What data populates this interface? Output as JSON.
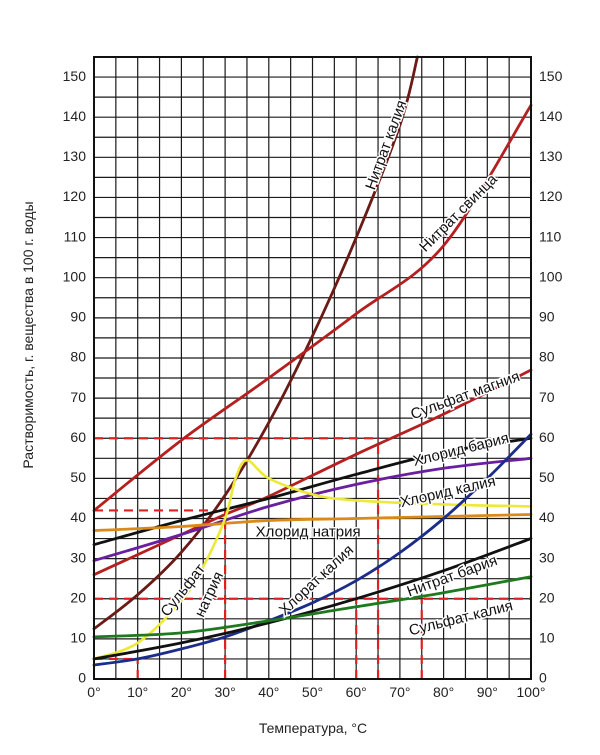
{
  "chart_data": {
    "type": "line",
    "xlabel": "Температура, °C",
    "ylabel": "Растворимость, г. вещества в 100 г. воды",
    "xlim": [
      0,
      100
    ],
    "ylim": [
      0,
      155
    ],
    "grid": true,
    "x_ticks": [
      {
        "v": 0,
        "label": "0°"
      },
      {
        "v": 10,
        "label": "10°"
      },
      {
        "v": 20,
        "label": "20°"
      },
      {
        "v": 30,
        "label": "30°"
      },
      {
        "v": 40,
        "label": "40°"
      },
      {
        "v": 50,
        "label": "50°"
      },
      {
        "v": 60,
        "label": "60°"
      },
      {
        "v": 70,
        "label": "70°"
      },
      {
        "v": 80,
        "label": "80°"
      },
      {
        "v": 90,
        "label": "90°"
      },
      {
        "v": 100,
        "label": "100°"
      }
    ],
    "y_ticks": [
      0,
      10,
      20,
      30,
      40,
      50,
      60,
      70,
      80,
      90,
      100,
      110,
      120,
      130,
      140,
      150
    ],
    "series": [
      {
        "name": "Нитрат калия",
        "color": "#6b1a16",
        "x": [
          0,
          10,
          20,
          30,
          40,
          50,
          60,
          70,
          74
        ],
        "y": [
          12.5,
          21,
          31.6,
          45.8,
          63.9,
          85.5,
          110,
          138,
          155
        ]
      },
      {
        "name": "Нитрат свинца",
        "color": "#b51f1f",
        "x": [
          0,
          20,
          40,
          60,
          80,
          100
        ],
        "y": [
          42,
          59.5,
          75,
          91,
          108,
          143
        ]
      },
      {
        "name": "Сульфат магния",
        "color": "#b51f1f",
        "x": [
          0,
          20,
          30,
          40,
          60,
          80,
          100
        ],
        "y": [
          26,
          36,
          41,
          45.5,
          56,
          66,
          77
        ]
      },
      {
        "name": "Хлорид бария",
        "color": "#111111",
        "x": [
          0,
          20,
          40,
          60,
          80,
          100
        ],
        "y": [
          33.5,
          39.5,
          45,
          51,
          56.5,
          60
        ]
      },
      {
        "name": "Хлорид калия",
        "color": "#6a1fa0",
        "x": [
          0,
          20,
          40,
          60,
          80,
          100
        ],
        "y": [
          29.5,
          36,
          43,
          48.5,
          52.5,
          55
        ]
      },
      {
        "name": "Хлорид натрия",
        "color": "#d98a18",
        "x": [
          0,
          20,
          40,
          60,
          80,
          100
        ],
        "y": [
          37,
          38,
          39.5,
          40,
          40.5,
          41
        ]
      },
      {
        "name": "Сульфат натрия",
        "color": "#ecea38",
        "x": [
          0,
          10,
          20,
          25,
          30,
          32.4,
          35,
          40,
          50,
          60,
          80,
          100
        ],
        "y": [
          5,
          9,
          19.5,
          28,
          40,
          50,
          54.5,
          50,
          46,
          44.5,
          43.5,
          43
        ]
      },
      {
        "name": "Хлорат калия",
        "color": "#1c2c8a",
        "x": [
          0,
          10,
          20,
          30,
          40,
          50,
          60,
          70,
          80,
          90,
          100
        ],
        "y": [
          3.5,
          5,
          7.5,
          10.5,
          14.5,
          19,
          24.5,
          31.5,
          40,
          50,
          61
        ]
      },
      {
        "name": "Нитрат бария",
        "color": "#111111",
        "x": [
          0,
          20,
          40,
          60,
          80,
          100
        ],
        "y": [
          5,
          9,
          14,
          20,
          27,
          35
        ]
      },
      {
        "name": "Сульфат калия",
        "color": "#1f7a1f",
        "x": [
          0,
          20,
          40,
          60,
          80,
          100
        ],
        "y": [
          10.5,
          11.5,
          14.5,
          18,
          21.5,
          25.5
        ]
      }
    ],
    "series_labels": [
      {
        "text": "Нитрат калия",
        "x": 67,
        "y": 133,
        "angle": -70
      },
      {
        "text": "Нитрат свинца",
        "x": 83.5,
        "y": 116,
        "angle": -45
      },
      {
        "text": "Сульфат магния",
        "x": 85,
        "y": 70.5,
        "angle": -20
      },
      {
        "text": "Хлорид бария",
        "x": 84,
        "y": 57,
        "angle": -14
      },
      {
        "text": "Хлорид калия",
        "x": 81,
        "y": 46.5,
        "angle": -13
      },
      {
        "text": "Хлорид натрия",
        "x": 49,
        "y": 36.5,
        "angle": 0
      },
      {
        "text": "Сульфат",
        "x": 20.5,
        "y": 22,
        "angle": -52
      },
      {
        "text": "натрия",
        "x": 26.5,
        "y": 21,
        "angle": -65
      },
      {
        "text": "Хлорат калия",
        "x": 51,
        "y": 24.5,
        "angle": -43
      },
      {
        "text": "Нитрат бария",
        "x": 82,
        "y": 25.5,
        "angle": -20
      },
      {
        "text": "Сульфат калия",
        "x": 84,
        "y": 15,
        "angle": -14
      }
    ],
    "reference_lines": [
      {
        "orientation": "h",
        "value": 60,
        "from": 0,
        "to": 65
      },
      {
        "orientation": "h",
        "value": 42,
        "from": 0,
        "to": 28
      },
      {
        "orientation": "h",
        "value": 20,
        "from": 0,
        "to": 100
      },
      {
        "orientation": "h",
        "value": 5,
        "from": 0,
        "to": 10
      },
      {
        "orientation": "v",
        "value": 10,
        "from": 0,
        "to": 5
      },
      {
        "orientation": "v",
        "value": 30,
        "from": 0,
        "to": 42
      },
      {
        "orientation": "v",
        "value": 60,
        "from": 0,
        "to": 20
      },
      {
        "orientation": "v",
        "value": 65,
        "from": 0,
        "to": 60
      },
      {
        "orientation": "v",
        "value": 75,
        "from": 0,
        "to": 20
      }
    ],
    "reference_color": "#e02020"
  }
}
